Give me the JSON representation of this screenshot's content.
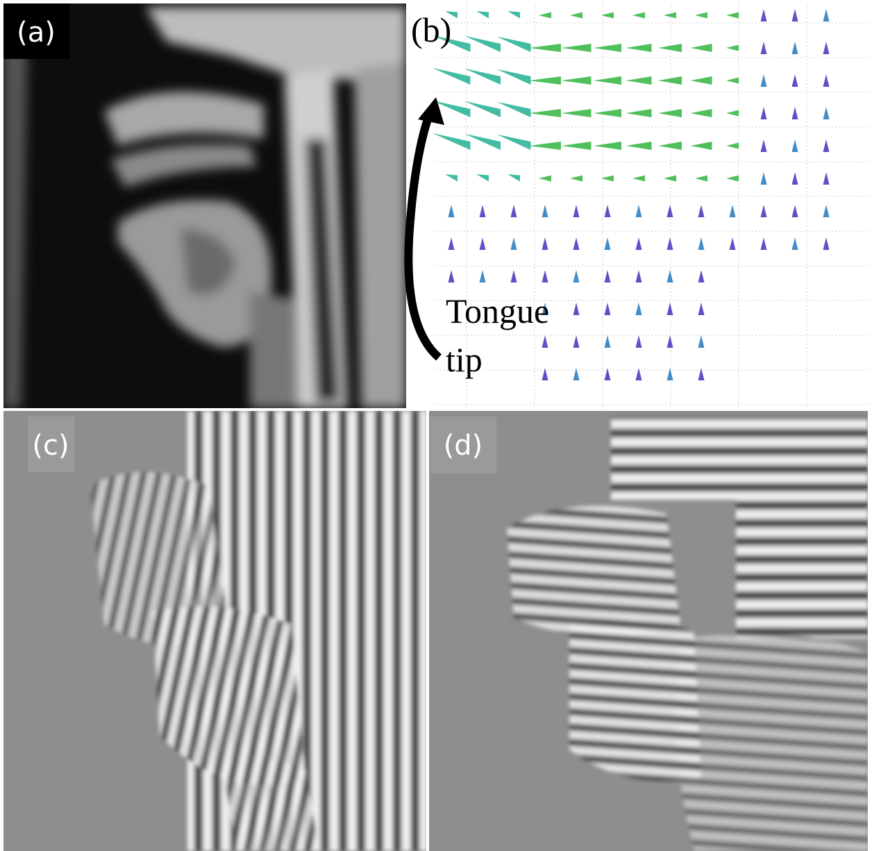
{
  "panels": [
    {
      "label": "(a)"
    },
    {
      "label": "(b)",
      "annotation": [
        "Tongue",
        "tip"
      ]
    },
    {
      "label": "(c)"
    },
    {
      "label": "(d)"
    }
  ]
}
